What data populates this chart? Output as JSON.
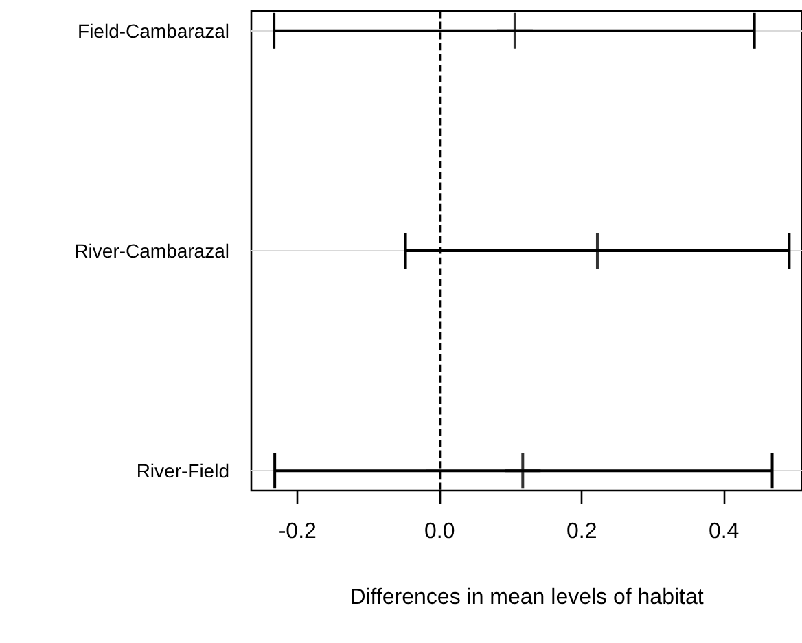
{
  "chart_data": {
    "type": "scatter",
    "orientation": "horizontal",
    "xlabel": "Differences in mean levels of habitat",
    "categories": [
      "Field-Cambarazal",
      "River-Cambarazal",
      "River-Field"
    ],
    "values": [
      0.106,
      0.222,
      0.117
    ],
    "errors": [
      [
        -0.233,
        0.443
      ],
      [
        -0.048,
        0.492
      ],
      [
        -0.232,
        0.468
      ]
    ],
    "color": "#000000",
    "marker": "cross",
    "xlim": [
      -0.265,
      0.51
    ],
    "xticks": [
      -0.2,
      {
        "value": 0,
        "label": "0.0"
      },
      0.2,
      0.4
    ],
    "ref_lines": [
      {
        "axis": "x",
        "value": 0,
        "line_style": "dashed"
      }
    ],
    "grid": "y"
  }
}
